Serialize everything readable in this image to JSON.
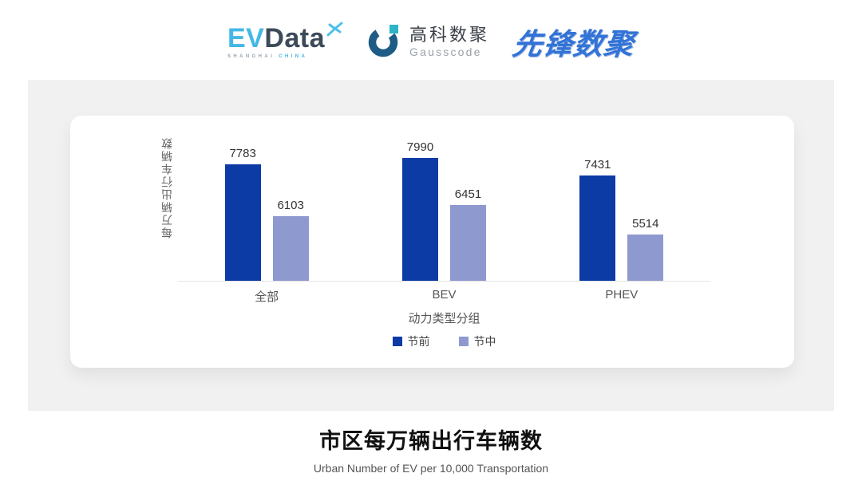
{
  "header": {
    "evdata_logo": {
      "ev": "EV",
      "data": "Data",
      "tagline_shanghai": "SHANGHAI ",
      "tagline_china": "CHINA"
    },
    "gausscode_logo": {
      "cn_name": "高科数聚",
      "en_name": "Gausscode"
    },
    "pioneer_logo": {
      "text": "先锋数聚"
    }
  },
  "chart_data": {
    "type": "bar",
    "categories": [
      "全部",
      "BEV",
      "PHEV"
    ],
    "series": [
      {
        "name": "节前",
        "color": "#0C3BA6",
        "values": [
          7783,
          7990,
          7431
        ]
      },
      {
        "name": "节中",
        "color": "#8E99CF",
        "values": [
          6103,
          6451,
          5514
        ]
      }
    ],
    "ylabel": "每万辆出行车辆数",
    "xlabel": "动力类型分组",
    "value_axis_min": 4000,
    "grid": false,
    "legend_position": "bottom",
    "bar_value_labels": true
  },
  "footer": {
    "title": "市区每万辆出行车辆数",
    "subtitle": "Urban Number of EV per 10,000 Transportation"
  },
  "colors": {
    "panel_background": "#F1F1F1",
    "axis_line": "#E4E4E4",
    "evdata_blue": "#45B7E6",
    "evdata_dark": "#3C4A5A",
    "gauss_arc": "#1E5C85",
    "gauss_square": "#2FB3C6",
    "pioneer_blue": "#3273D6"
  }
}
